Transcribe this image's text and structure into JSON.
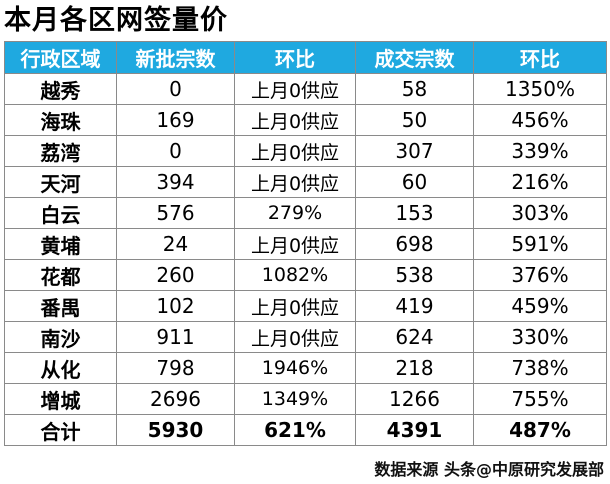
{
  "title": "本月各区网签量价",
  "table": {
    "headers": [
      "行政区域",
      "新批宗数",
      "环比",
      "成交宗数",
      "环比"
    ],
    "rows": [
      [
        "越秀",
        "0",
        "上月0供应",
        "58",
        "1350%"
      ],
      [
        "海珠",
        "169",
        "上月0供应",
        "50",
        "456%"
      ],
      [
        "荔湾",
        "0",
        "上月0供应",
        "307",
        "339%"
      ],
      [
        "天河",
        "394",
        "上月0供应",
        "60",
        "216%"
      ],
      [
        "白云",
        "576",
        "279%",
        "153",
        "303%"
      ],
      [
        "黄埔",
        "24",
        "上月0供应",
        "698",
        "591%"
      ],
      [
        "花都",
        "260",
        "1082%",
        "538",
        "376%"
      ],
      [
        "番禺",
        "102",
        "上月0供应",
        "419",
        "459%"
      ],
      [
        "南沙",
        "911",
        "上月0供应",
        "624",
        "330%"
      ],
      [
        "从化",
        "798",
        "1946%",
        "218",
        "738%"
      ],
      [
        "增城",
        "2696",
        "1349%",
        "1266",
        "755%"
      ]
    ],
    "total": [
      "合计",
      "5930",
      "621%",
      "4391",
      "487%"
    ]
  },
  "source": "数据来源 头条@中原研究发展部",
  "colors": {
    "header_bg": "#1fa9e0",
    "header_text": "#ffffff",
    "border": "#8a8a8a"
  }
}
